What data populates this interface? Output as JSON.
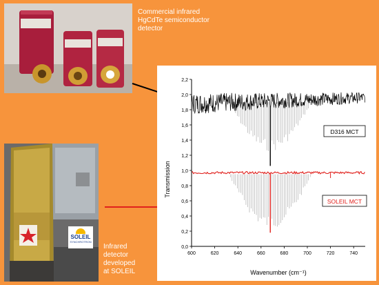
{
  "captions": {
    "top": [
      "Commercial infrared",
      "HgCdTe semiconductor",
      "detector"
    ],
    "bottom": [
      "Infrared",
      "detector",
      "developed",
      "at SOLEIL"
    ]
  },
  "photos": {
    "soleil_logo_text": "SOLEIL",
    "soleil_logo_sub": "SYNCHROTRON"
  },
  "colors": {
    "background": "#f7943c",
    "d316_series": "#000000",
    "soleil_series": "#e0201c",
    "reference_lines": "#a0a0a0",
    "arrow_top": "#000000",
    "arrow_bottom": "#e0201c"
  },
  "chart_data": {
    "type": "line",
    "xlabel": "Wavenumber (cm⁻¹)",
    "ylabel": "Transmission",
    "xlim": [
      600,
      750
    ],
    "ylim": [
      0.0,
      2.2
    ],
    "xticks": [
      "600",
      "620",
      "640",
      "660",
      "680",
      "700",
      "720",
      "740"
    ],
    "yticks": [
      "0,0",
      "0,2",
      "0,4",
      "0,6",
      "0,8",
      "1,0",
      "1,2",
      "1,4",
      "1,6",
      "1,8",
      "2,0",
      "2,2"
    ],
    "grid": false,
    "series": [
      {
        "name": "D316 MCT",
        "description_level": 1.95,
        "noise_band": [
          1.8,
          2.15
        ],
        "dip": {
          "x": 668,
          "y": 1.06
        }
      },
      {
        "name": "SOLEIL MCT",
        "description_level": 0.97,
        "dip": {
          "x": 668,
          "y": 0.18
        }
      }
    ],
    "legend_labels": [
      "D316 MCT",
      "SOLEIL MCT"
    ]
  }
}
